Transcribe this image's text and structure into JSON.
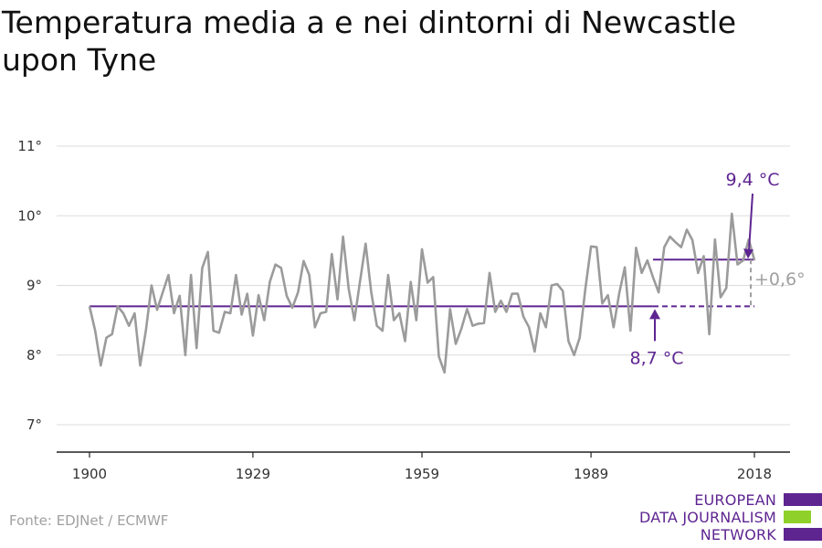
{
  "chart_data": {
    "type": "line",
    "title": "Temperatura media a e nei dintorni di Newcastle upon Tyne",
    "xlabel": "",
    "ylabel": "",
    "xlim": [
      1900,
      2018
    ],
    "ylim": [
      7,
      11
    ],
    "y_ticks": [
      {
        "value": 7,
        "label": "7°"
      },
      {
        "value": 8,
        "label": "8°"
      },
      {
        "value": 9,
        "label": "9°"
      },
      {
        "value": 10,
        "label": "10°"
      },
      {
        "value": 11,
        "label": "11°"
      }
    ],
    "x_ticks": [
      {
        "value": 1900,
        "label": "1900"
      },
      {
        "value": 1929,
        "label": "1929"
      },
      {
        "value": 1959,
        "label": "1959"
      },
      {
        "value": 1989,
        "label": "1989"
      },
      {
        "value": 2018,
        "label": "2018"
      }
    ],
    "grid": "horizontal",
    "series": [
      {
        "color": "#9b9b9b",
        "x": [
          1900,
          1901,
          1902,
          1903,
          1904,
          1905,
          1906,
          1907,
          1908,
          1909,
          1910,
          1911,
          1912,
          1913,
          1914,
          1915,
          1916,
          1917,
          1918,
          1919,
          1920,
          1921,
          1922,
          1923,
          1924,
          1925,
          1926,
          1927,
          1928,
          1929,
          1930,
          1931,
          1932,
          1933,
          1934,
          1935,
          1936,
          1937,
          1938,
          1939,
          1940,
          1941,
          1942,
          1943,
          1944,
          1945,
          1946,
          1947,
          1948,
          1949,
          1950,
          1951,
          1952,
          1953,
          1954,
          1955,
          1956,
          1957,
          1958,
          1959,
          1960,
          1961,
          1962,
          1963,
          1964,
          1965,
          1966,
          1967,
          1968,
          1969,
          1970,
          1971,
          1972,
          1973,
          1974,
          1975,
          1976,
          1977,
          1978,
          1979,
          1980,
          1981,
          1982,
          1983,
          1984,
          1985,
          1986,
          1987,
          1988,
          1989,
          1990,
          1991,
          1992,
          1993,
          1994,
          1995,
          1996,
          1997,
          1998,
          1999,
          2000,
          2001,
          2002,
          2003,
          2004,
          2005,
          2006,
          2007,
          2008,
          2009,
          2010,
          2011,
          2012,
          2013,
          2014,
          2015,
          2016,
          2017,
          2018
        ],
        "values": [
          8.7,
          8.35,
          7.85,
          8.25,
          8.3,
          8.7,
          8.6,
          8.42,
          8.6,
          7.85,
          8.35,
          9.0,
          8.65,
          8.9,
          9.15,
          8.6,
          8.85,
          8.0,
          9.15,
          8.1,
          9.25,
          9.48,
          8.35,
          8.32,
          8.62,
          8.6,
          9.15,
          8.58,
          8.88,
          8.28,
          8.86,
          8.5,
          9.05,
          9.3,
          9.25,
          8.85,
          8.68,
          8.9,
          9.35,
          9.15,
          8.4,
          8.6,
          8.62,
          9.45,
          8.8,
          9.7,
          8.95,
          8.5,
          9.05,
          9.6,
          8.9,
          8.42,
          8.35,
          9.15,
          8.5,
          8.6,
          8.2,
          9.05,
          8.5,
          9.52,
          9.04,
          9.12,
          7.98,
          7.75,
          8.66,
          8.16,
          8.38,
          8.66,
          8.42,
          8.45,
          8.46,
          9.18,
          8.62,
          8.78,
          8.62,
          8.88,
          8.88,
          8.55,
          8.4,
          8.05,
          8.6,
          8.4,
          9.0,
          9.02,
          8.92,
          8.2,
          8.0,
          8.25,
          8.95,
          9.56,
          9.55,
          8.74,
          8.86,
          8.4,
          8.88,
          9.26,
          8.35,
          9.54,
          9.18,
          9.36,
          9.12,
          8.9,
          9.55,
          9.7,
          9.62,
          9.55,
          9.8,
          9.65,
          9.18,
          9.42,
          8.3,
          9.66,
          8.83,
          8.96,
          10.03,
          9.3,
          9.36,
          9.66,
          9.36
        ]
      }
    ],
    "reference_lines": [
      {
        "name": "baseline",
        "value": 8.7,
        "x_from": 1900,
        "x_to": 2018,
        "solid_to": 2000,
        "color": "#5e2591"
      },
      {
        "name": "recent",
        "value": 9.37,
        "x_from": 2000,
        "x_to": 2018,
        "color": "#5e2591"
      }
    ],
    "annotations": {
      "recent_label": "9,4 °C",
      "baseline_label": "8,7 °C",
      "diff_label": "+0,6°"
    }
  },
  "source": "Fonte: EDJNet / ECMWF",
  "logo": {
    "lines": [
      "EUROPEAN",
      "DATA JOURNALISM",
      "NETWORK"
    ],
    "purple": "#5e2591",
    "green": "#8fd12a"
  }
}
